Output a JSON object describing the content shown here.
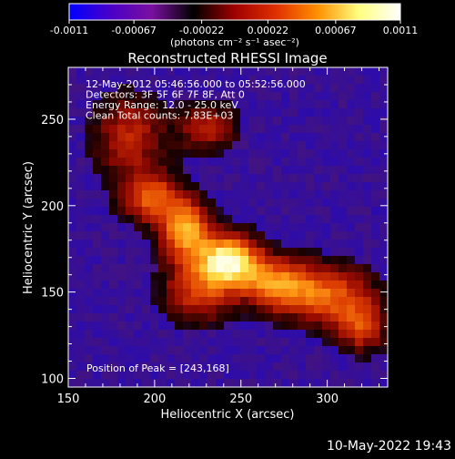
{
  "colorbar": {
    "ticks": [
      "-0.0011",
      "-0.00067",
      "-0.00022",
      "0.00022",
      "0.00067",
      "0.0011"
    ],
    "tick_values": [
      -0.0011,
      -0.00067,
      -0.00022,
      0.00022,
      0.00067,
      0.0011
    ],
    "unit_label": "(photons cm⁻² s⁻¹ asec⁻²)",
    "range": [
      -0.0011,
      0.0011
    ],
    "colors": [
      "#0000ff",
      "#4a00c8",
      "#7a10a0",
      "#000000",
      "#a00000",
      "#e03000",
      "#ff9000",
      "#ffff80",
      "#ffffff"
    ]
  },
  "chart_data": {
    "type": "heatmap",
    "title": "Reconstructed RHESSI Image",
    "xlabel": "Heliocentric X (arcsec)",
    "ylabel": "Heliocentric Y (arcsec)",
    "xlim": [
      150,
      335
    ],
    "ylim": [
      95,
      280
    ],
    "xticks": [
      150,
      200,
      250,
      300
    ],
    "yticks": [
      100,
      150,
      200,
      250
    ],
    "xtick_labels": [
      "150",
      "200",
      "250",
      "300"
    ],
    "ytick_labels": [
      "100",
      "150",
      "200",
      "250"
    ],
    "info_lines": [
      "12-May-2012 05:46:56.000 to 05:52:56.000",
      "Detectors: 3F 5F 6F 7F 8F, Att 0",
      "Energy Range: 12.0 - 25.0 keV",
      "Clean     Total counts: 7.83E+03"
    ],
    "peak_label": "Position of Peak = [243,168]",
    "peak": [
      243,
      168
    ],
    "sources": [
      {
        "x": 243,
        "y": 168,
        "sx": 12,
        "sy": 10,
        "amp": 1.0
      },
      {
        "x": 218,
        "y": 185,
        "sx": 10,
        "sy": 12,
        "amp": 0.75
      },
      {
        "x": 198,
        "y": 205,
        "sx": 12,
        "sy": 10,
        "amp": 0.55
      },
      {
        "x": 270,
        "y": 155,
        "sx": 14,
        "sy": 10,
        "amp": 0.6
      },
      {
        "x": 300,
        "y": 148,
        "sx": 18,
        "sy": 12,
        "amp": 0.55
      },
      {
        "x": 225,
        "y": 150,
        "sx": 14,
        "sy": 12,
        "amp": 0.45
      },
      {
        "x": 185,
        "y": 240,
        "sx": 14,
        "sy": 16,
        "amp": 0.4
      },
      {
        "x": 230,
        "y": 245,
        "sx": 12,
        "sy": 10,
        "amp": 0.35
      },
      {
        "x": 320,
        "y": 130,
        "sx": 10,
        "sy": 10,
        "amp": 0.45
      }
    ]
  },
  "footer": {
    "timestamp": "10-May-2022 19:43"
  }
}
